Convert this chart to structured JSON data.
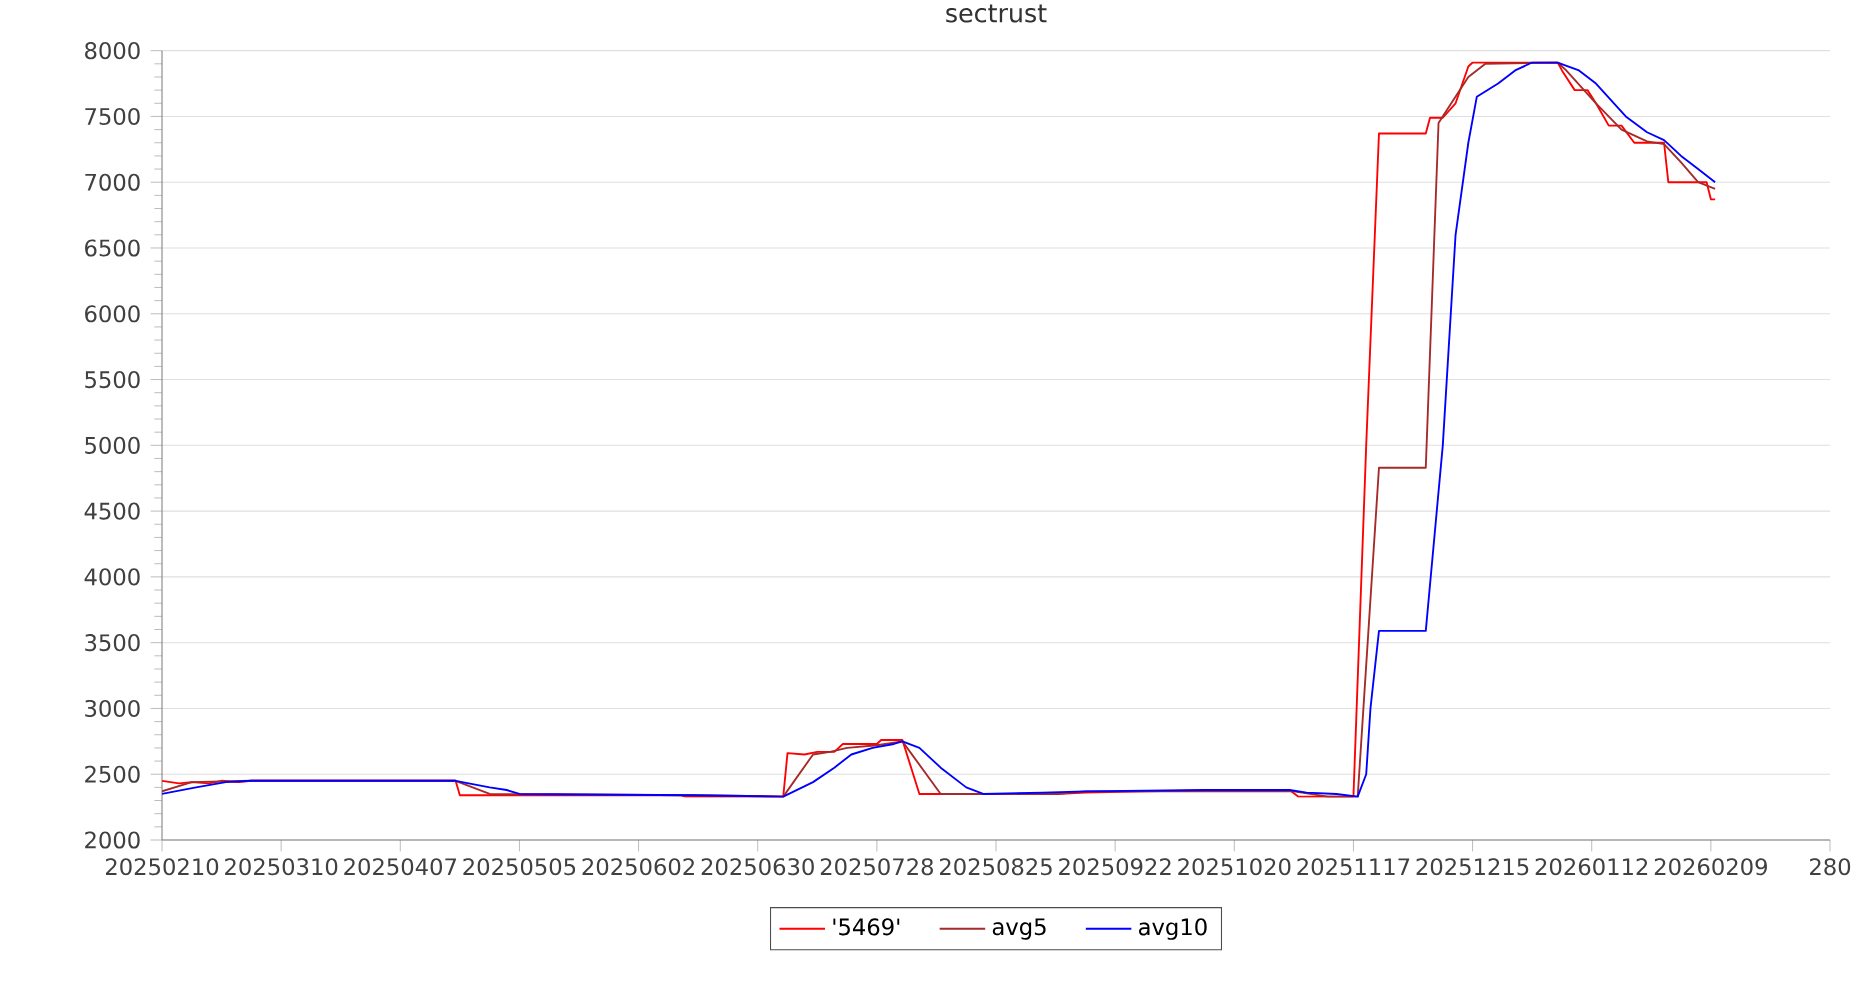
{
  "chart_data": {
    "type": "line",
    "title": "sectrust",
    "xlim": [
      "2025-02-10",
      "2026-03-09"
    ],
    "ylim": [
      2000,
      8000
    ],
    "xticks": [
      {
        "value": "2025-02-10",
        "label": "20250210"
      },
      {
        "value": "2025-03-10",
        "label": "20250310"
      },
      {
        "value": "2025-04-07",
        "label": "20250407"
      },
      {
        "value": "2025-05-05",
        "label": "20250505"
      },
      {
        "value": "2025-06-02",
        "label": "20250602"
      },
      {
        "value": "2025-06-30",
        "label": "20250630"
      },
      {
        "value": "2025-07-28",
        "label": "20250728"
      },
      {
        "value": "2025-08-25",
        "label": "20250825"
      },
      {
        "value": "2025-09-22",
        "label": "20250922"
      },
      {
        "value": "2025-10-20",
        "label": "20251020"
      },
      {
        "value": "2025-11-17",
        "label": "20251117"
      },
      {
        "value": "2025-12-15",
        "label": "20251215"
      },
      {
        "value": "2026-01-12",
        "label": "20260112"
      },
      {
        "value": "2026-02-09",
        "label": "20260209"
      },
      {
        "value": "2026-03-09",
        "label": "280"
      }
    ],
    "yticks": [
      2000,
      2500,
      3000,
      3500,
      4000,
      4500,
      5000,
      5500,
      6000,
      6500,
      7000,
      7500,
      8000
    ],
    "grid": "y",
    "legend": "bottom",
    "marker": "none",
    "line_style": "solid",
    "series": [
      {
        "name": "'5469'",
        "color": "#ff0000",
        "x": [
          "2025-02-10",
          "2025-02-14",
          "2025-02-17",
          "2025-02-21",
          "2025-02-24",
          "2025-02-28",
          "2025-03-03",
          "2025-04-20",
          "2025-04-21",
          "2025-06-12",
          "2025-06-13",
          "2025-07-06",
          "2025-07-07",
          "2025-07-11",
          "2025-07-14",
          "2025-07-18",
          "2025-07-20",
          "2025-07-28",
          "2025-07-29",
          "2025-08-03",
          "2025-08-07",
          "2025-09-08",
          "2025-09-15",
          "2025-09-29",
          "2025-10-20",
          "2025-10-27",
          "2025-11-02",
          "2025-11-04",
          "2025-11-17",
          "2025-11-20",
          "2025-11-23",
          "2025-12-04",
          "2025-12-05",
          "2025-12-08",
          "2025-12-11",
          "2025-12-14",
          "2025-12-15",
          "2026-01-04",
          "2026-01-05",
          "2026-01-08",
          "2026-01-11",
          "2026-01-13",
          "2026-01-16",
          "2026-01-19",
          "2026-01-22",
          "2026-01-25",
          "2026-01-29",
          "2026-01-30",
          "2026-02-08",
          "2026-02-09",
          "2026-02-10"
        ],
        "values": [
          2450,
          2430,
          2440,
          2430,
          2450,
          2440,
          2450,
          2450,
          2340,
          2340,
          2330,
          2330,
          2660,
          2650,
          2670,
          2670,
          2730,
          2730,
          2760,
          2760,
          2350,
          2350,
          2360,
          2370,
          2380,
          2380,
          2380,
          2330,
          2330,
          5000,
          7370,
          7370,
          7490,
          7490,
          7600,
          7880,
          7910,
          7910,
          7850,
          7700,
          7700,
          7600,
          7430,
          7430,
          7300,
          7300,
          7300,
          7000,
          7000,
          6870,
          6870
        ]
      },
      {
        "name": "avg5",
        "color": "#a52a2a",
        "x": [
          "2025-02-10",
          "2025-02-17",
          "2025-03-03",
          "2025-04-20",
          "2025-04-28",
          "2025-06-15",
          "2025-07-06",
          "2025-07-13",
          "2025-07-17",
          "2025-07-21",
          "2025-07-28",
          "2025-08-03",
          "2025-08-12",
          "2025-09-08",
          "2025-09-15",
          "2025-11-03",
          "2025-11-11",
          "2025-11-18",
          "2025-11-23",
          "2025-12-04",
          "2025-12-07",
          "2025-12-09",
          "2025-12-14",
          "2025-12-18",
          "2026-01-04",
          "2026-01-06",
          "2026-01-13",
          "2026-01-19",
          "2026-01-25",
          "2026-01-29",
          "2026-02-02",
          "2026-02-06",
          "2026-02-10"
        ],
        "values": [
          2370,
          2440,
          2450,
          2450,
          2350,
          2340,
          2330,
          2650,
          2670,
          2700,
          2720,
          2750,
          2350,
          2350,
          2370,
          2370,
          2330,
          2330,
          4830,
          4830,
          7450,
          7550,
          7800,
          7900,
          7910,
          7850,
          7600,
          7400,
          7310,
          7290,
          7150,
          7000,
          6950
        ]
      },
      {
        "name": "avg10",
        "color": "#0000ff",
        "x": [
          "2025-02-10",
          "2025-02-18",
          "2025-02-25",
          "2025-03-03",
          "2025-04-20",
          "2025-04-28",
          "2025-05-02",
          "2025-05-05",
          "2025-06-15",
          "2025-07-06",
          "2025-07-13",
          "2025-07-18",
          "2025-07-22",
          "2025-07-27",
          "2025-08-01",
          "2025-08-03",
          "2025-08-07",
          "2025-08-12",
          "2025-08-18",
          "2025-08-22",
          "2025-09-05",
          "2025-09-15",
          "2025-10-13",
          "2025-11-02",
          "2025-11-06",
          "2025-11-13",
          "2025-11-18",
          "2025-11-20",
          "2025-11-21",
          "2025-11-23",
          "2025-12-04",
          "2025-12-08",
          "2025-12-11",
          "2025-12-14",
          "2025-12-16",
          "2025-12-21",
          "2025-12-25",
          "2025-12-29",
          "2026-01-04",
          "2026-01-09",
          "2026-01-13",
          "2026-01-20",
          "2026-01-25",
          "2026-01-29",
          "2026-02-02",
          "2026-02-06",
          "2026-02-10"
        ],
        "values": [
          2350,
          2400,
          2440,
          2450,
          2450,
          2400,
          2380,
          2350,
          2340,
          2330,
          2440,
          2550,
          2650,
          2700,
          2730,
          2750,
          2700,
          2550,
          2400,
          2350,
          2360,
          2370,
          2380,
          2380,
          2360,
          2350,
          2330,
          2500,
          3000,
          3590,
          3590,
          5000,
          6600,
          7300,
          7650,
          7750,
          7850,
          7910,
          7910,
          7850,
          7750,
          7500,
          7380,
          7320,
          7200,
          7100,
          7000
        ]
      }
    ]
  }
}
